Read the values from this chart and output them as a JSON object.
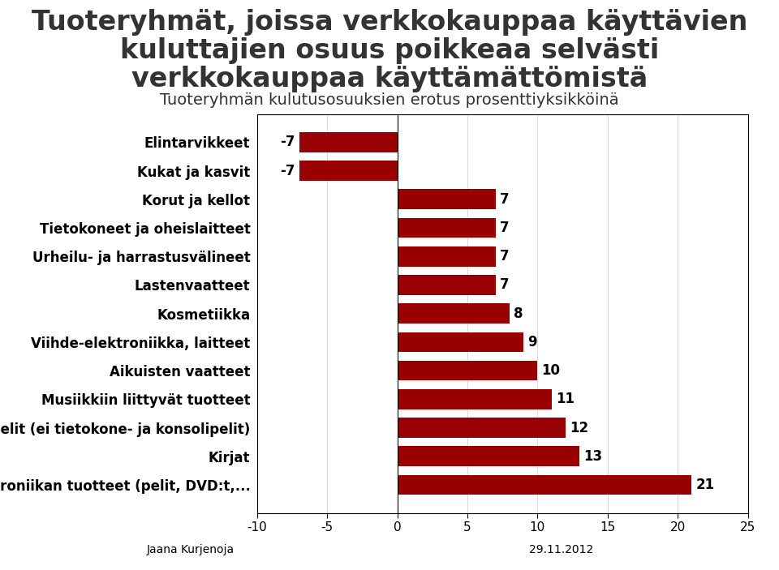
{
  "title_line1": "Tuoteryhmät, joissa verkkokauppaa käyttävien",
  "title_line2": "kuluttajien osuus poikkeaa selvästi",
  "title_line3": "verkkokauppaa käyttämättömistä",
  "subtitle": "Tuoteryhmän kulutusosuuksien erotus prosenttiyksikköinä",
  "categories": [
    "Viihde-elektroniikan tuotteet (pelit, DVD:t,...",
    "Kirjat",
    "Lelut ja pelit (ei tietokone- ja konsolipelit)",
    "Musiikkiin liittyvät tuotteet",
    "Aikuisten vaatteet",
    "Viihde-elektroniikka, laitteet",
    "Kosmetiikka",
    "Lastenvaatteet",
    "Urheilu- ja harrastusvälineet",
    "Tietokoneet ja oheislaitteet",
    "Korut ja kellot",
    "Kukat ja kasvit",
    "Elintarvikkeet"
  ],
  "values": [
    21,
    13,
    12,
    11,
    10,
    9,
    8,
    7,
    7,
    7,
    7,
    -7,
    -7
  ],
  "bar_color": "#990000",
  "xlabel_left": "Jaana Kurjenoja",
  "xlabel_right": "29.11.2012",
  "xlim": [
    -10,
    25
  ],
  "xticks": [
    -10,
    -5,
    0,
    5,
    10,
    15,
    20,
    25
  ],
  "background_color": "#ffffff",
  "title_fontsize": 24,
  "subtitle_fontsize": 14,
  "label_fontsize": 12,
  "value_fontsize": 12
}
